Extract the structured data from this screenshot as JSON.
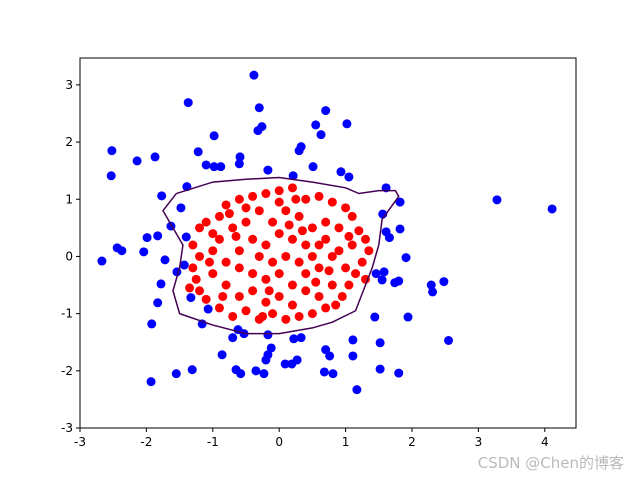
{
  "chart_data": {
    "type": "scatter",
    "xlim": [
      -3,
      4.47
    ],
    "ylim": [
      -3,
      3.47
    ],
    "xticks": [
      -3,
      -2,
      -1,
      0,
      1,
      2,
      3,
      4
    ],
    "yticks": [
      -3,
      -2,
      -1,
      0,
      1,
      2,
      3
    ],
    "series": [
      {
        "color": "#0000ff",
        "x": [
          -0.38,
          -1.37,
          -0.3,
          0.7,
          -0.26,
          -0.32,
          0.55,
          1.02,
          -0.98,
          0.63,
          -2.52,
          0.33,
          0.3,
          -1.22,
          -2.14,
          -1.87,
          -0.59,
          -1.1,
          -0.98,
          -0.88,
          -0.6,
          -0.17,
          0.51,
          0.93,
          1.05,
          -2.53,
          0.21,
          -1.39,
          -1.77,
          1.61,
          1.82,
          3.28,
          4.11,
          -1.48,
          1.56,
          -1.63,
          -1.99,
          -1.83,
          -1.4,
          1.61,
          1.66,
          1.82,
          -2.04,
          -2.44,
          -2.37,
          -2.67,
          -1.72,
          1.91,
          -1.43,
          -1.54,
          1.46,
          1.58,
          1.55,
          -1.78,
          1.8,
          1.74,
          2.29,
          2.48,
          2.31,
          -1.83,
          -1.33,
          -1.07,
          1.44,
          1.94,
          -1.92,
          -1.16,
          -0.62,
          -0.53,
          -0.7,
          -0.17,
          0.22,
          0.33,
          2.55,
          1.11,
          1.52,
          -0.12,
          -0.86,
          0.7,
          -0.17,
          0.76,
          1.11,
          -0.2,
          0.27,
          0.19,
          0.09,
          -1.31,
          -0.65,
          -0.35,
          0.68,
          1.52,
          1.8,
          -1.55,
          -0.58,
          -0.23,
          0.81,
          -1.93,
          1.17
        ],
        "values": [
          3.17,
          2.69,
          2.6,
          2.55,
          2.27,
          2.2,
          2.3,
          2.32,
          2.11,
          2.13,
          1.85,
          1.92,
          1.85,
          1.83,
          1.67,
          1.74,
          1.74,
          1.6,
          1.57,
          1.57,
          1.62,
          1.51,
          1.57,
          1.48,
          1.39,
          1.41,
          1.41,
          1.22,
          1.06,
          1.2,
          0.95,
          0.99,
          0.83,
          0.85,
          0.74,
          0.53,
          0.33,
          0.36,
          0.34,
          0.43,
          0.33,
          0.48,
          0.08,
          0.15,
          0.1,
          -0.08,
          -0.06,
          -0.02,
          -0.15,
          -0.27,
          -0.3,
          -0.27,
          -0.41,
          -0.48,
          -0.43,
          -0.46,
          -0.5,
          -0.44,
          -0.62,
          -0.81,
          -0.72,
          -0.92,
          -1.06,
          -1.06,
          -1.18,
          -1.18,
          -1.28,
          -1.35,
          -1.42,
          -1.37,
          -1.44,
          -1.42,
          -1.47,
          -1.46,
          -1.51,
          -1.6,
          -1.72,
          -1.63,
          -1.72,
          -1.74,
          -1.74,
          -1.81,
          -1.81,
          -1.88,
          -1.88,
          -1.98,
          -1.98,
          -2.0,
          -2.02,
          -1.97,
          -2.04,
          -2.05,
          -2.05,
          -2.05,
          -2.05,
          -2.19,
          -2.33
        ]
      },
      {
        "color": "#ff0000",
        "x": [
          -1.2,
          -1.1,
          -1.0,
          -0.9,
          -0.8,
          -0.6,
          -0.4,
          -0.2,
          0.0,
          0.2,
          0.4,
          0.6,
          0.8,
          1.0,
          1.1,
          1.2,
          1.3,
          1.35,
          1.25,
          1.15,
          1.05,
          0.95,
          0.7,
          0.5,
          0.3,
          0.1,
          -0.1,
          -0.3,
          -0.5,
          -0.7,
          -0.9,
          -1.1,
          -1.2,
          -1.25,
          -1.3,
          -1.2,
          -1.3,
          -1.0,
          -0.8,
          -0.6,
          -0.4,
          -0.2,
          0.0,
          0.2,
          0.4,
          0.6,
          0.8,
          1.0,
          0.9,
          0.7,
          0.5,
          0.3,
          0.1,
          -0.1,
          -0.3,
          -0.5,
          -0.7,
          -0.9,
          -1.0,
          -0.8,
          -0.6,
          -0.4,
          -0.2,
          0.0,
          0.2,
          0.4,
          0.6,
          0.8,
          0.6,
          0.4,
          0.2,
          0.0,
          -0.2,
          -0.4,
          -0.6,
          -0.3,
          -0.1,
          0.1,
          0.3,
          0.5,
          0.7,
          0.9,
          1.1,
          0.0,
          -0.5,
          -0.85,
          0.85,
          1.3,
          -1.35,
          0.15,
          -0.15,
          0.55,
          -0.65,
          0.35,
          1.05,
          -1.05,
          0.25,
          -0.25,
          0.75,
          -0.75
        ],
        "values": [
          0.5,
          0.6,
          0.4,
          0.7,
          0.9,
          1.0,
          1.05,
          1.1,
          1.15,
          1.2,
          1.0,
          1.05,
          0.95,
          0.85,
          0.7,
          0.45,
          0.3,
          0.1,
          -0.1,
          -0.3,
          -0.5,
          -0.7,
          -0.9,
          -1.0,
          -1.05,
          -1.1,
          -1.0,
          -1.1,
          -0.95,
          -1.05,
          -0.9,
          -0.75,
          -0.6,
          -0.4,
          -0.2,
          0.0,
          0.2,
          -0.3,
          -0.5,
          -0.7,
          -0.6,
          -0.8,
          -0.7,
          -0.85,
          -0.6,
          -0.7,
          -0.5,
          -0.2,
          0.1,
          0.3,
          0.5,
          0.7,
          0.8,
          0.6,
          0.8,
          0.6,
          0.5,
          0.3,
          0.1,
          -0.1,
          -0.2,
          -0.3,
          -0.4,
          -0.3,
          -0.5,
          -0.3,
          -0.2,
          0.0,
          0.2,
          0.2,
          0.3,
          0.4,
          0.2,
          0.3,
          0.1,
          0.0,
          -0.1,
          0.0,
          -0.1,
          0.0,
          0.6,
          0.5,
          0.2,
          0.95,
          0.85,
          -0.7,
          -0.85,
          -0.4,
          -0.55,
          0.55,
          -0.6,
          -0.45,
          0.35,
          0.45,
          0.35,
          -0.1,
          1.0,
          -1.05,
          -0.25,
          0.75
        ]
      },
      {
        "type": "line",
        "color": "#440154",
        "x": [
          -1.55,
          -1.0,
          -0.5,
          0.0,
          0.5,
          1.0,
          1.2,
          1.5,
          1.75,
          1.8,
          1.55,
          1.5,
          1.4,
          1.3,
          1.15,
          0.8,
          0.5,
          0.0,
          -0.5,
          -1.0,
          -1.5,
          -1.6,
          -1.5,
          -1.45,
          -1.75,
          -1.55
        ],
        "values": [
          1.1,
          1.3,
          1.35,
          1.38,
          1.3,
          1.2,
          1.1,
          1.15,
          1.15,
          1.05,
          0.65,
          0.2,
          -0.2,
          -0.5,
          -0.95,
          -1.15,
          -1.25,
          -1.35,
          -1.35,
          -1.2,
          -1.0,
          -0.6,
          -0.2,
          0.2,
          0.8,
          1.1
        ]
      }
    ]
  },
  "watermark": "CSDN @Chen的博客"
}
